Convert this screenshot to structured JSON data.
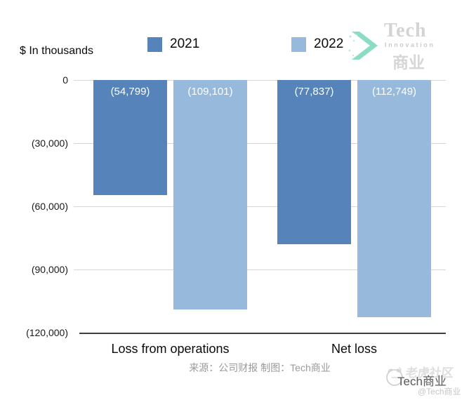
{
  "header": {
    "unit_note": "$ In thousands",
    "logo": {
      "line1": "Tech",
      "line2": "Innovation",
      "line3": "商业",
      "arrow_color": "#8bdcc5"
    }
  },
  "chart_data": {
    "type": "bar",
    "title": "$ In thousands",
    "categories": [
      "Loss from operations",
      "Net loss"
    ],
    "series": [
      {
        "name": "2021",
        "color": "#5684ba",
        "values": [
          -54799,
          -77837
        ],
        "value_labels": [
          "(54,799)",
          "(77,837)"
        ]
      },
      {
        "name": "2022",
        "color": "#97b9dc",
        "values": [
          -109101,
          -112749
        ],
        "value_labels": [
          "(109,101)",
          "(112,749)"
        ]
      }
    ],
    "ylim": [
      -120000,
      0
    ],
    "yticks": [
      {
        "value": 0,
        "label": "0"
      },
      {
        "value": -30000,
        "label": "(30,000)"
      },
      {
        "value": -60000,
        "label": "(60,000)"
      },
      {
        "value": -90000,
        "label": "(90,000)"
      },
      {
        "value": -120000,
        "label": "(120,000)"
      }
    ],
    "grid": "horizontal",
    "legend_position": "top"
  },
  "footer": {
    "source_line": "来源：公司财报 制图：Tech商业",
    "watermark": {
      "community": "老虎社区",
      "brand": "Tech商业",
      "handle": "@Tech商业"
    }
  }
}
